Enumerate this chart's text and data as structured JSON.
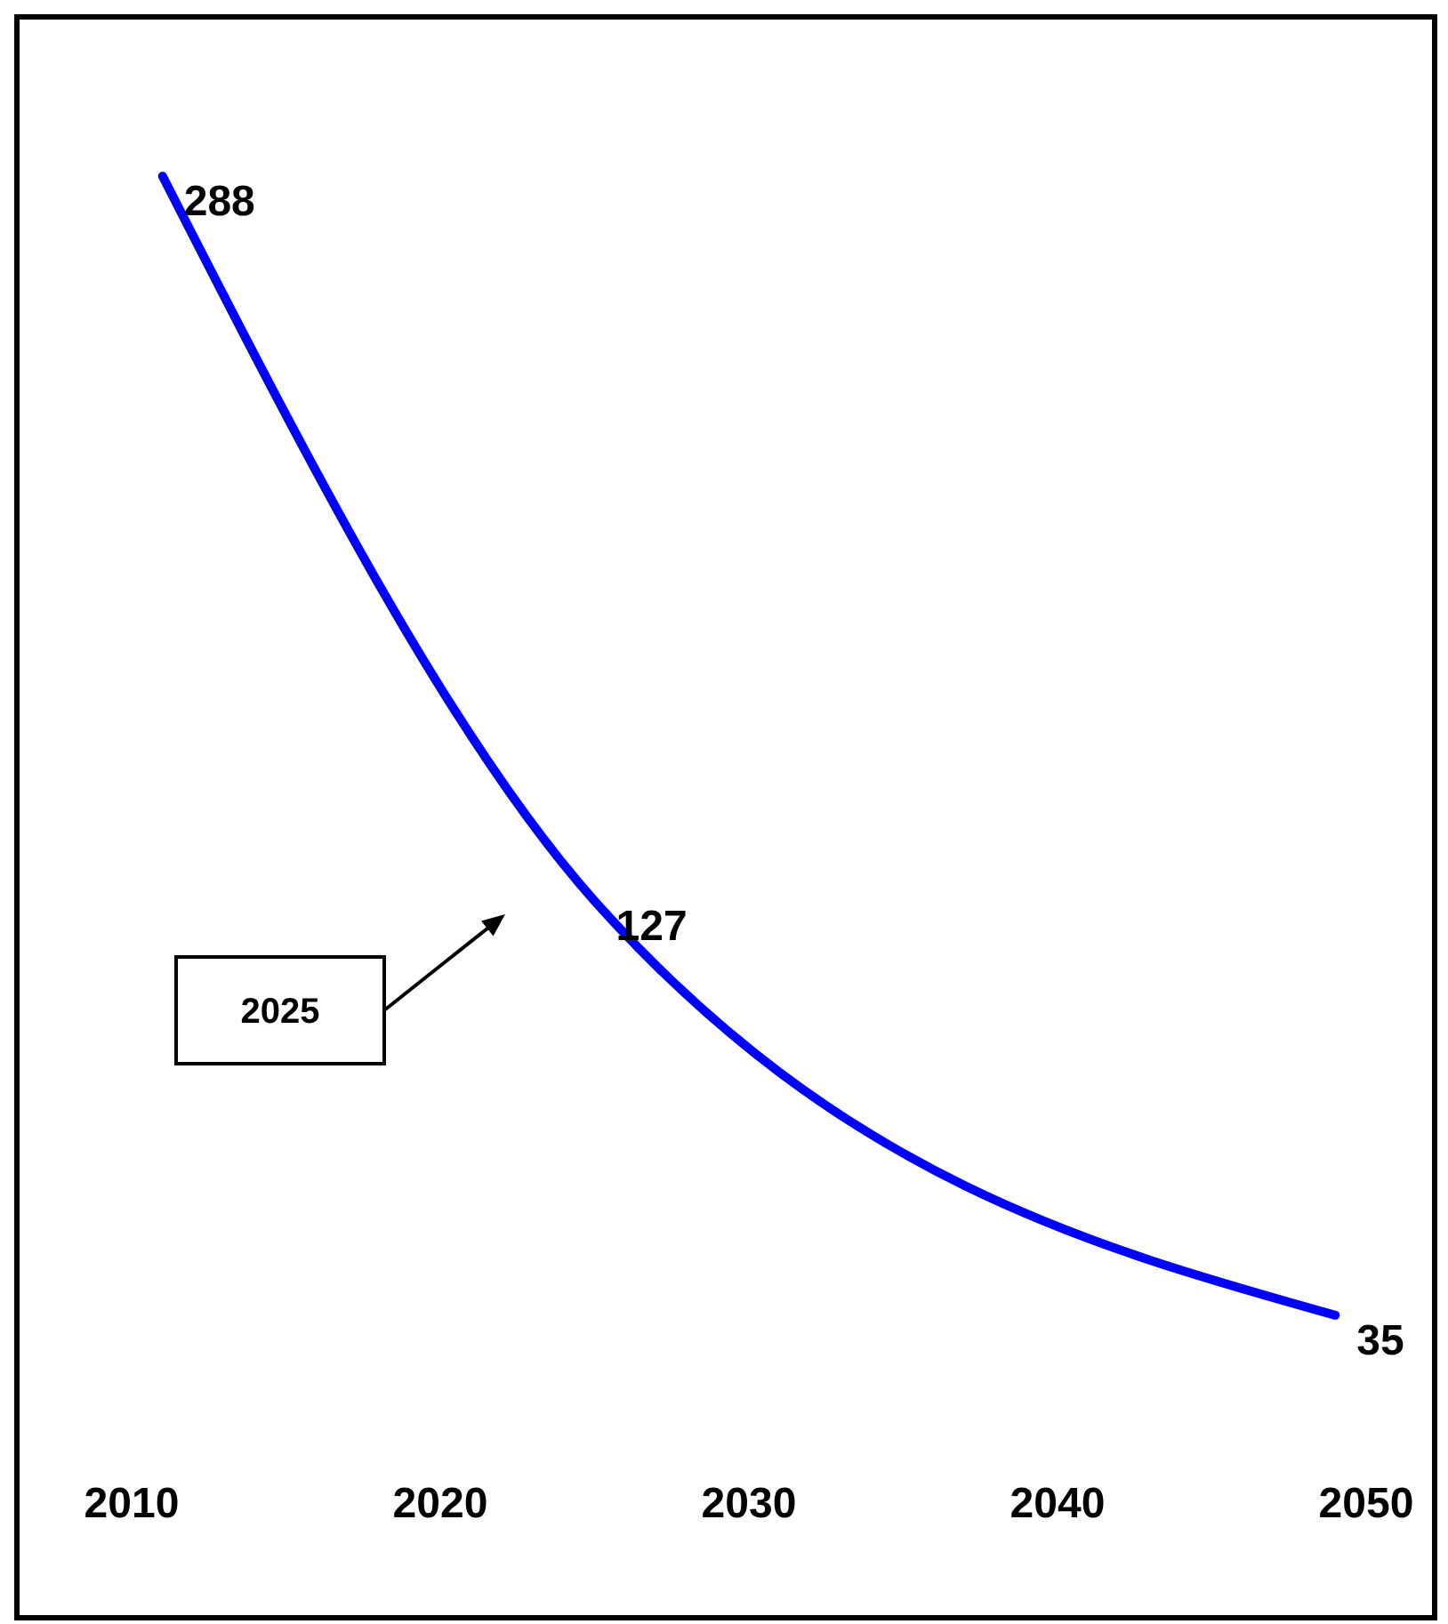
{
  "chart_data": {
    "type": "line",
    "x": [
      2011,
      2025,
      2049
    ],
    "values": [
      288,
      127,
      35
    ],
    "color": "#0000ff",
    "data_labels": true,
    "marker": "none",
    "line_style": "solid",
    "grid": false,
    "legend": false,
    "tick_labels": "x",
    "xlim": [
      2010,
      2050
    ],
    "xticks": [
      2010,
      2020,
      2030,
      2040,
      2050
    ],
    "annotations": [
      "2025"
    ]
  }
}
